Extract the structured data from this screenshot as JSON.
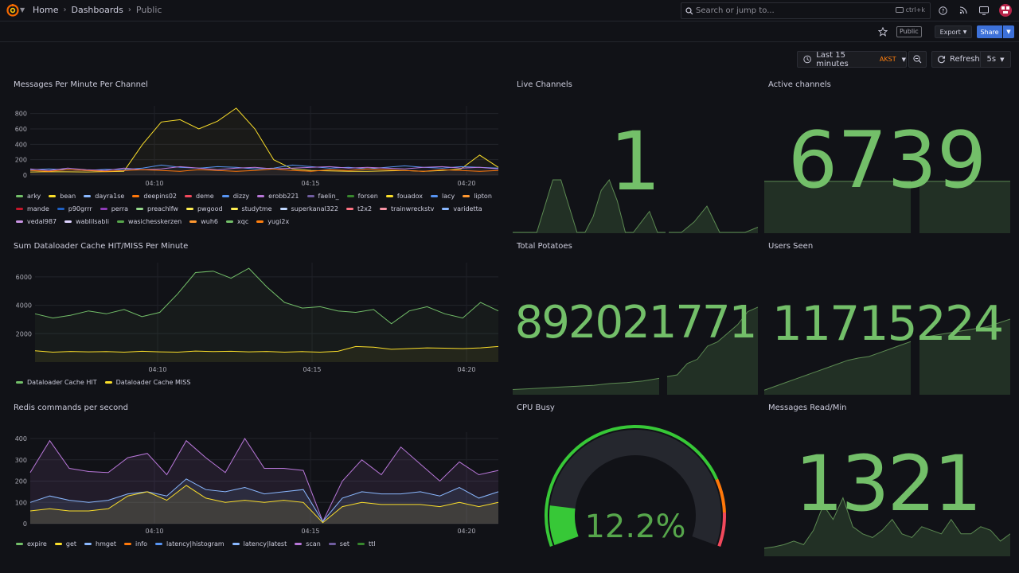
{
  "nav": {
    "breadcrumbs": [
      "Home",
      "Dashboards",
      "Public"
    ],
    "search_placeholder": "Search or jump to...",
    "search_shortcut": "ctrl+k"
  },
  "toolbar": {
    "public_tag": "Public",
    "export_label": "Export",
    "share_label": "Share"
  },
  "timepicker": {
    "range_label": "Last 15 minutes",
    "timezone": "AKST",
    "refresh_label": "Refresh",
    "interval": "5s"
  },
  "colors": {
    "accent": "#3d71d9",
    "stat_green": "#73bf69",
    "background": "#111217",
    "timezone_orange": "#ff7f0e"
  },
  "panels": {
    "messages": {
      "title": "Messages Per Minute Per Channel",
      "legend": [
        {
          "name": "arky",
          "color": "#73bf69"
        },
        {
          "name": "bean",
          "color": "#fade2a"
        },
        {
          "name": "dayra1se",
          "color": "#8ab8ff"
        },
        {
          "name": "deepins02",
          "color": "#ff780a"
        },
        {
          "name": "deme",
          "color": "#f2495c"
        },
        {
          "name": "dizzy",
          "color": "#5794f2"
        },
        {
          "name": "erobb221",
          "color": "#b877d9"
        },
        {
          "name": "faelin_",
          "color": "#705da0"
        },
        {
          "name": "forsen",
          "color": "#37872d"
        },
        {
          "name": "fouadox",
          "color": "#fade2a"
        },
        {
          "name": "lacy",
          "color": "#5794f2"
        },
        {
          "name": "lipton",
          "color": "#ff9830"
        },
        {
          "name": "mande",
          "color": "#c4162a"
        },
        {
          "name": "p90grrr",
          "color": "#1f60c4"
        },
        {
          "name": "perra",
          "color": "#8f3bb8"
        },
        {
          "name": "preachlfw",
          "color": "#96d98d"
        },
        {
          "name": "pwgood",
          "color": "#ffee52"
        },
        {
          "name": "studytme",
          "color": "#ffee52"
        },
        {
          "name": "superkanal322",
          "color": "#c0d8ff"
        },
        {
          "name": "t2x2",
          "color": "#ff7383"
        },
        {
          "name": "trainwreckstv",
          "color": "#f794a5"
        },
        {
          "name": "varidetta",
          "color": "#8ab8ff"
        },
        {
          "name": "vedal987",
          "color": "#ca95e5"
        },
        {
          "name": "wablilsabli",
          "color": "#ded3ff"
        },
        {
          "name": "wasichesskerzen",
          "color": "#56a64b"
        },
        {
          "name": "wuh6",
          "color": "#ff9830"
        },
        {
          "name": "xqc",
          "color": "#73bf69"
        },
        {
          "name": "yugi2x",
          "color": "#ff7f0e"
        }
      ]
    },
    "live_channels": {
      "title": "Live Channels",
      "value": "1"
    },
    "active_channels": {
      "title": "Active channels",
      "value": "6739"
    },
    "dataloader": {
      "title": "Sum Dataloader Cache HIT/MISS Per Minute",
      "legend": [
        {
          "name": "Dataloader Cache HIT",
          "color": "#73bf69"
        },
        {
          "name": "Dataloader Cache MISS",
          "color": "#fade2a"
        }
      ]
    },
    "total_potatoes": {
      "title": "Total Potatoes",
      "value": "892021771"
    },
    "users_seen": {
      "title": "Users Seen",
      "value": "11715224"
    },
    "redis": {
      "title": "Redis commands per second",
      "legend": [
        {
          "name": "expire",
          "color": "#73bf69"
        },
        {
          "name": "get",
          "color": "#fade2a"
        },
        {
          "name": "hmget",
          "color": "#8ab8ff"
        },
        {
          "name": "info",
          "color": "#ff780a"
        },
        {
          "name": "latency|histogram",
          "color": "#5794f2"
        },
        {
          "name": "latency|latest",
          "color": "#8ab8ff"
        },
        {
          "name": "scan",
          "color": "#b877d9"
        },
        {
          "name": "set",
          "color": "#705da0"
        },
        {
          "name": "ttl",
          "color": "#37872d"
        }
      ]
    },
    "cpu_busy": {
      "title": "CPU Busy",
      "value": "12.2%",
      "fraction": 0.122
    },
    "messages_read": {
      "title": "Messages Read/Min",
      "value": "1321"
    }
  },
  "chart_data": [
    {
      "type": "line",
      "title": "Messages Per Minute Per Channel",
      "ylim": [
        0,
        900
      ],
      "yticks": [
        "800",
        "600",
        "400",
        "200",
        "0"
      ],
      "xticks": [
        "04:10",
        "04:15",
        "04:20"
      ],
      "series": [
        {
          "name": "bean",
          "values": [
            40,
            45,
            42,
            40,
            45,
            50,
            400,
            690,
            720,
            600,
            700,
            870,
            600,
            200,
            80,
            60,
            55,
            50,
            50,
            55,
            60,
            50,
            60,
            80,
            260,
            100
          ]
        },
        {
          "name": "dizzy",
          "values": [
            70,
            80,
            70,
            60,
            75,
            70,
            90,
            130,
            100,
            90,
            110,
            100,
            80,
            90,
            130,
            110,
            90,
            100,
            80,
            100,
            120,
            100,
            90,
            110,
            100,
            90
          ]
        },
        {
          "name": "erobb221",
          "values": [
            80,
            60,
            90,
            70,
            60,
            90,
            70,
            80,
            110,
            90,
            70,
            90,
            100,
            80,
            90,
            100,
            110,
            90,
            100,
            90,
            80,
            100,
            110,
            90,
            100,
            80
          ]
        },
        {
          "name": "deepins02",
          "values": [
            60,
            50,
            70,
            60,
            50,
            60,
            70,
            60,
            50,
            70,
            60,
            50,
            60,
            80,
            60,
            50,
            70,
            60,
            80,
            70,
            60,
            50,
            70,
            60,
            50,
            60
          ]
        }
      ]
    },
    {
      "type": "line",
      "title": "Sum Dataloader Cache HIT/MISS Per Minute",
      "ylim": [
        0,
        7000
      ],
      "yticks": [
        "6000",
        "4000",
        "2000"
      ],
      "xticks": [
        "04:10",
        "04:15",
        "04:20"
      ],
      "series": [
        {
          "name": "Dataloader Cache HIT",
          "values": [
            3400,
            3100,
            3300,
            3600,
            3400,
            3700,
            3200,
            3500,
            4800,
            6300,
            6400,
            5900,
            6600,
            5300,
            4200,
            3800,
            3900,
            3600,
            3500,
            3700,
            2700,
            3600,
            3900,
            3400,
            3100,
            4200,
            3600
          ]
        },
        {
          "name": "Dataloader Cache MISS",
          "values": [
            800,
            700,
            750,
            720,
            740,
            700,
            760,
            720,
            700,
            780,
            740,
            760,
            720,
            750,
            700,
            740,
            700,
            760,
            1100,
            1050,
            900,
            950,
            1000,
            980,
            950,
            1000,
            1100
          ]
        }
      ]
    },
    {
      "type": "area",
      "title": "Redis commands per second",
      "ylim": [
        0,
        430
      ],
      "yticks": [
        "400",
        "300",
        "200",
        "100",
        "0"
      ],
      "xticks": [
        "04:10",
        "04:15",
        "04:20"
      ],
      "series": [
        {
          "name": "scan",
          "values": [
            240,
            390,
            260,
            245,
            240,
            310,
            330,
            230,
            390,
            310,
            240,
            400,
            260,
            260,
            250,
            10,
            200,
            300,
            230,
            360,
            280,
            200,
            290,
            230,
            250
          ]
        },
        {
          "name": "hmget",
          "values": [
            100,
            130,
            110,
            100,
            110,
            140,
            150,
            130,
            210,
            160,
            150,
            170,
            140,
            150,
            160,
            10,
            120,
            150,
            140,
            140,
            150,
            130,
            170,
            120,
            150
          ]
        },
        {
          "name": "get",
          "values": [
            60,
            70,
            60,
            60,
            70,
            130,
            150,
            110,
            180,
            120,
            100,
            110,
            100,
            110,
            100,
            5,
            80,
            100,
            90,
            90,
            90,
            80,
            100,
            80,
            100
          ]
        }
      ]
    }
  ],
  "sparklines": {
    "live_channels": [
      1,
      1,
      1,
      1,
      1.5,
      2,
      2,
      1.5,
      1,
      1,
      1.3,
      1.8,
      2,
      1.6,
      1,
      1,
      1.2,
      1.4,
      1,
      1,
      1,
      1,
      1.2,
      1.5,
      1,
      1,
      1,
      1.1
    ],
    "active_channels": [
      1,
      1,
      1,
      1,
      1,
      1,
      1,
      1,
      1,
      1,
      1,
      1
    ],
    "total_potatoes": [
      0.05,
      0.06,
      0.07,
      0.08,
      0.09,
      0.1,
      0.12,
      0.13,
      0.15,
      0.18,
      0.2,
      0.22,
      0.35,
      0.4,
      0.55,
      0.6,
      0.7,
      0.8,
      0.95,
      1
    ],
    "users_seen": [
      0.05,
      0.1,
      0.15,
      0.2,
      0.25,
      0.3,
      0.35,
      0.4,
      0.45,
      0.48,
      0.5,
      0.55,
      0.6,
      0.65,
      0.7,
      0.75,
      0.8,
      0.85,
      0.9,
      1
    ],
    "messages_read": [
      0.1,
      0.12,
      0.15,
      0.2,
      0.15,
      0.35,
      0.7,
      0.5,
      0.8,
      0.4,
      0.3,
      0.25,
      0.35,
      0.5,
      0.3,
      0.25,
      0.4,
      0.35,
      0.3,
      0.5,
      0.3,
      0.3,
      0.4,
      0.35,
      0.2,
      0.3
    ]
  }
}
